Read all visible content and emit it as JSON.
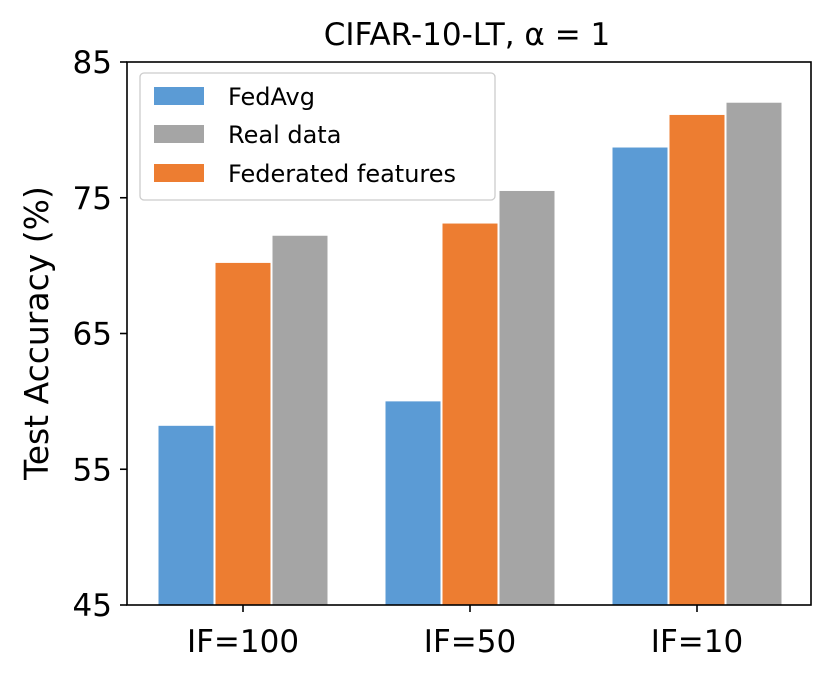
{
  "chart_data": {
    "type": "bar",
    "title": "CIFAR-10-LT, α = 1",
    "xlabel": "",
    "ylabel": "Test Accuracy (%)",
    "ylim": [
      45,
      85
    ],
    "yticks": [
      "45",
      "55",
      "65",
      "75",
      "85"
    ],
    "yticks_values": [
      45,
      55,
      65,
      75,
      85
    ],
    "categories": [
      "IF=100",
      "IF=50",
      "IF=10"
    ],
    "series": [
      {
        "name": "FedAvg",
        "color": "#5b9bd5",
        "values": [
          58.2,
          60.0,
          78.7
        ]
      },
      {
        "name": "Federated features",
        "color": "#ed7d31",
        "values": [
          70.2,
          73.1,
          81.1
        ]
      },
      {
        "name": "Real data",
        "color": "#a5a5a5",
        "values": [
          72.2,
          75.5,
          82.0
        ]
      }
    ],
    "legend": {
      "position": "top-left",
      "entries": [
        {
          "label": "FedAvg",
          "color": "#5b9bd5"
        },
        {
          "label": "Real data",
          "color": "#a5a5a5"
        },
        {
          "label": "Federated features",
          "color": "#ed7d31"
        }
      ]
    },
    "grid": false
  }
}
